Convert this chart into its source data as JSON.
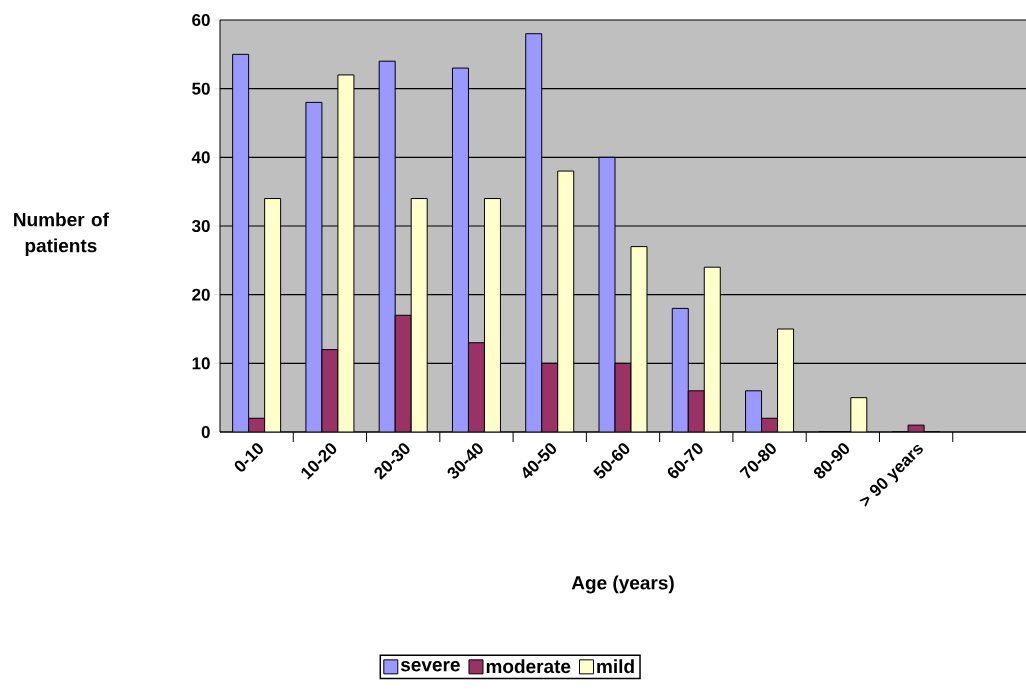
{
  "chart_data": {
    "type": "bar",
    "xlabel": "Age (years)",
    "ylabel": "Number of patients",
    "categories": [
      "0-10",
      "10-20",
      "20-30",
      "30-40",
      "40-50",
      "50-60",
      "60-70",
      "70-80",
      "80-90",
      "> 90 years",
      null
    ],
    "series": [
      {
        "name": "severe",
        "color": "#9999ff",
        "values": [
          55,
          48,
          54,
          53,
          58,
          40,
          18,
          6,
          0,
          0,
          null
        ]
      },
      {
        "name": "moderate",
        "color": "#993366",
        "values": [
          2,
          12,
          17,
          13,
          10,
          10,
          6,
          2,
          0,
          1,
          null
        ]
      },
      {
        "name": "mild",
        "color": "#ffffcc",
        "values": [
          34,
          52,
          34,
          34,
          38,
          27,
          24,
          15,
          5,
          0,
          null
        ]
      }
    ],
    "ylim": [
      0,
      60
    ],
    "yticks": [
      0,
      10,
      20,
      30,
      40,
      50,
      60
    ],
    "grid": "y",
    "legend": "bottom"
  }
}
